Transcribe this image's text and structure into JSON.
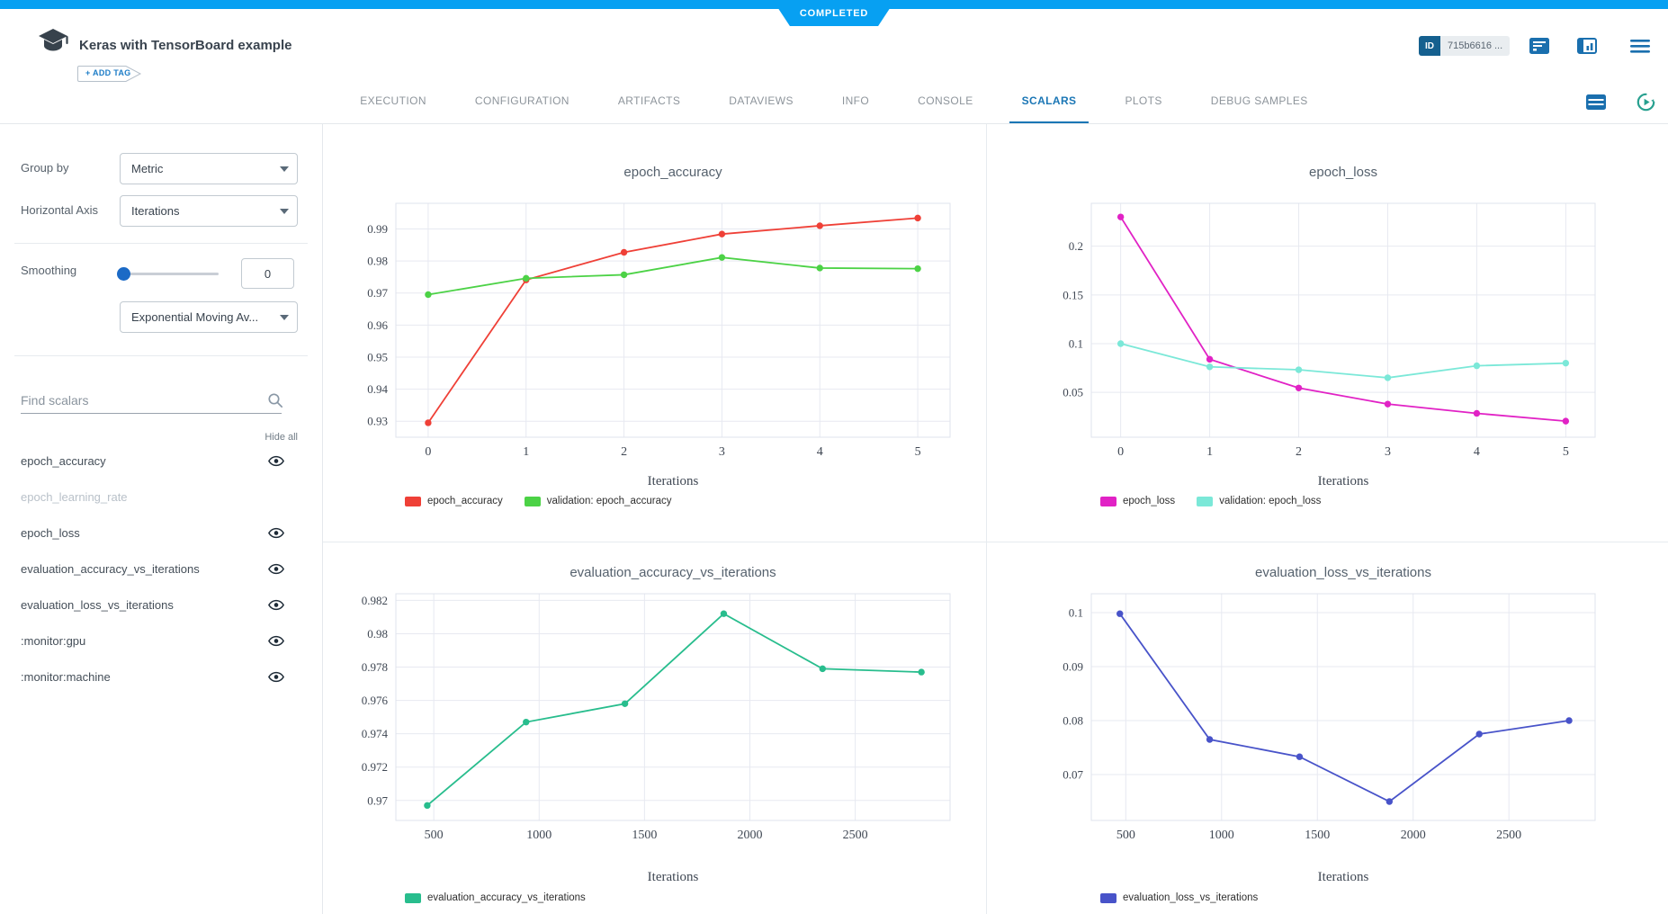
{
  "status_badge": {
    "label": "COMPLETED"
  },
  "header": {
    "title": "Keras with TensorBoard example",
    "add_tag_label": "+ ADD TAG",
    "id_badge": {
      "label": "ID",
      "value": "715b6616 ..."
    }
  },
  "tabs": {
    "items": [
      {
        "label": "EXECUTION",
        "active": false
      },
      {
        "label": "CONFIGURATION",
        "active": false
      },
      {
        "label": "ARTIFACTS",
        "active": false
      },
      {
        "label": "DATAVIEWS",
        "active": false
      },
      {
        "label": "INFO",
        "active": false
      },
      {
        "label": "CONSOLE",
        "active": false
      },
      {
        "label": "SCALARS",
        "active": true
      },
      {
        "label": "PLOTS",
        "active": false
      },
      {
        "label": "DEBUG SAMPLES",
        "active": false
      }
    ]
  },
  "sidebar": {
    "group_by": {
      "label": "Group by",
      "value": "Metric"
    },
    "horizontal_axis": {
      "label": "Horizontal Axis",
      "value": "Iterations"
    },
    "smoothing": {
      "label": "Smoothing",
      "value": "0",
      "type_value": "Exponential Moving Av..."
    },
    "search": {
      "placeholder": "Find scalars"
    },
    "hide_all_label": "Hide all",
    "metrics": [
      {
        "name": "epoch_accuracy",
        "visible": true,
        "dimmed": false
      },
      {
        "name": "epoch_learning_rate",
        "visible": false,
        "dimmed": true
      },
      {
        "name": "epoch_loss",
        "visible": true,
        "dimmed": false
      },
      {
        "name": "evaluation_accuracy_vs_iterations",
        "visible": true,
        "dimmed": false
      },
      {
        "name": "evaluation_loss_vs_iterations",
        "visible": true,
        "dimmed": false
      },
      {
        "name": ":monitor:gpu",
        "visible": true,
        "dimmed": false
      },
      {
        "name": ":monitor:machine",
        "visible": true,
        "dimmed": false
      }
    ]
  },
  "colors": {
    "topbar_blue": "#07a0f2",
    "active_tab_blue": "#1a76b5",
    "icon_blue": "#1a6fae",
    "refresh_teal": "#27a08f",
    "grid": "#e7e9f1",
    "tick_text": "#3f4753"
  },
  "chart_data": [
    {
      "type": "line",
      "title": "epoch_accuracy",
      "xlabel": "Iterations",
      "x_range": [
        -0.33,
        5.33
      ],
      "y_range": [
        0.925,
        0.998
      ],
      "x_ticks": [
        {
          "v": 0,
          "label": "0"
        },
        {
          "v": 1,
          "label": "1"
        },
        {
          "v": 2,
          "label": "2"
        },
        {
          "v": 3,
          "label": "3"
        },
        {
          "v": 4,
          "label": "4"
        },
        {
          "v": 5,
          "label": "5"
        }
      ],
      "y_ticks": [
        {
          "v": 0.93,
          "label": "0.93"
        },
        {
          "v": 0.94,
          "label": "0.94"
        },
        {
          "v": 0.95,
          "label": "0.95"
        },
        {
          "v": 0.96,
          "label": "0.96"
        },
        {
          "v": 0.97,
          "label": "0.97"
        },
        {
          "v": 0.98,
          "label": "0.98"
        },
        {
          "v": 0.99,
          "label": "0.99"
        }
      ],
      "series": [
        {
          "name": "epoch_accuracy",
          "color": "#ef4037",
          "x": [
            0,
            1,
            2,
            3,
            4,
            5
          ],
          "y": [
            0.9295,
            0.9741,
            0.9827,
            0.9884,
            0.991,
            0.9934
          ]
        },
        {
          "name": "validation: epoch_accuracy",
          "color": "#4cd246",
          "x": [
            0,
            1,
            2,
            3,
            4,
            5
          ],
          "y": [
            0.9695,
            0.9746,
            0.9757,
            0.9811,
            0.9778,
            0.9776
          ]
        }
      ]
    },
    {
      "type": "line",
      "title": "epoch_loss",
      "xlabel": "Iterations",
      "x_range": [
        -0.33,
        5.33
      ],
      "y_range": [
        0.004,
        0.244
      ],
      "x_ticks": [
        {
          "v": 0,
          "label": "0"
        },
        {
          "v": 1,
          "label": "1"
        },
        {
          "v": 2,
          "label": "2"
        },
        {
          "v": 3,
          "label": "3"
        },
        {
          "v": 4,
          "label": "4"
        },
        {
          "v": 5,
          "label": "5"
        }
      ],
      "y_ticks": [
        {
          "v": 0.05,
          "label": "0.05"
        },
        {
          "v": 0.1,
          "label": "0.1"
        },
        {
          "v": 0.15,
          "label": "0.15"
        },
        {
          "v": 0.2,
          "label": "0.2"
        }
      ],
      "series": [
        {
          "name": "epoch_loss",
          "color": "#e122c5",
          "x": [
            0,
            1,
            2,
            3,
            4,
            5
          ],
          "y": [
            0.23,
            0.084,
            0.0545,
            0.038,
            0.0285,
            0.0205
          ]
        },
        {
          "name": "validation: epoch_loss",
          "color": "#7be8d8",
          "x": [
            0,
            1,
            2,
            3,
            4,
            5
          ],
          "y": [
            0.1,
            0.0762,
            0.0732,
            0.065,
            0.0773,
            0.08
          ]
        }
      ]
    },
    {
      "type": "line",
      "title": "evaluation_accuracy_vs_iterations",
      "xlabel": "Iterations",
      "x_range": [
        320,
        2950
      ],
      "y_range": [
        0.9688,
        0.9824
      ],
      "x_ticks": [
        {
          "v": 500,
          "label": "500"
        },
        {
          "v": 1000,
          "label": "1000"
        },
        {
          "v": 1500,
          "label": "1500"
        },
        {
          "v": 2000,
          "label": "2000"
        },
        {
          "v": 2500,
          "label": "2500"
        }
      ],
      "y_ticks": [
        {
          "v": 0.97,
          "label": "0.97"
        },
        {
          "v": 0.972,
          "label": "0.972"
        },
        {
          "v": 0.974,
          "label": "0.974"
        },
        {
          "v": 0.976,
          "label": "0.976"
        },
        {
          "v": 0.978,
          "label": "0.978"
        },
        {
          "v": 0.98,
          "label": "0.98"
        },
        {
          "v": 0.982,
          "label": "0.982"
        }
      ],
      "series": [
        {
          "name": "evaluation_accuracy_vs_iterations",
          "color": "#28bd8d",
          "x": [
            469,
            938,
            1407,
            1876,
            2345,
            2814
          ],
          "y": [
            0.9697,
            0.9747,
            0.9758,
            0.9812,
            0.9779,
            0.9777
          ]
        }
      ]
    },
    {
      "type": "line",
      "title": "evaluation_loss_vs_iterations",
      "xlabel": "Iterations",
      "x_range": [
        320,
        2950
      ],
      "y_range": [
        0.0615,
        0.1035
      ],
      "x_ticks": [
        {
          "v": 500,
          "label": "500"
        },
        {
          "v": 1000,
          "label": "1000"
        },
        {
          "v": 1500,
          "label": "1500"
        },
        {
          "v": 2000,
          "label": "2000"
        },
        {
          "v": 2500,
          "label": "2500"
        }
      ],
      "y_ticks": [
        {
          "v": 0.07,
          "label": "0.07"
        },
        {
          "v": 0.08,
          "label": "0.08"
        },
        {
          "v": 0.09,
          "label": "0.09"
        },
        {
          "v": 0.1,
          "label": "0.1"
        }
      ],
      "series": [
        {
          "name": "evaluation_loss_vs_iterations",
          "color": "#4853c9",
          "x": [
            469,
            938,
            1407,
            1876,
            2345,
            2814
          ],
          "y": [
            0.0998,
            0.0765,
            0.0733,
            0.065,
            0.0775,
            0.08
          ]
        }
      ]
    }
  ]
}
